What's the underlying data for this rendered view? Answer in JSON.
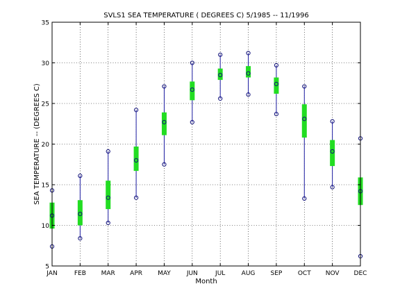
{
  "chart_data": {
    "type": "box",
    "title": "SVLS1  SEA TEMPERATURE ( DEGREES C) 5/1985 -- 11/1996",
    "xlabel": "Month",
    "ylabel": "SEA TEMPERATURE -- (DEGREES C)",
    "ylim": [
      5,
      35
    ],
    "yticks": [
      "5",
      "10",
      "15",
      "20",
      "25",
      "30",
      "35"
    ],
    "grid": true,
    "categories": [
      "JAN",
      "FEB",
      "MAR",
      "APR",
      "MAY",
      "JUN",
      "JUL",
      "AUG",
      "SEP",
      "OCT",
      "NOV",
      "DEC"
    ],
    "min": [
      7.4,
      8.4,
      10.3,
      13.4,
      17.5,
      22.7,
      25.6,
      26.1,
      23.7,
      13.3,
      14.7,
      6.2
    ],
    "max": [
      14.3,
      16.1,
      19.1,
      24.2,
      27.1,
      30.0,
      31.0,
      31.2,
      29.7,
      27.1,
      22.8,
      20.7
    ],
    "q1": [
      9.6,
      10.0,
      12.0,
      16.7,
      21.1,
      25.4,
      27.9,
      28.2,
      26.2,
      20.8,
      17.3,
      12.5
    ],
    "q3": [
      12.8,
      13.1,
      15.5,
      19.7,
      23.9,
      27.7,
      29.3,
      29.6,
      28.2,
      24.9,
      20.5,
      15.9
    ],
    "mean": [
      11.2,
      11.4,
      13.4,
      18.0,
      22.7,
      26.7,
      28.5,
      28.7,
      27.4,
      23.1,
      19.1,
      14.2
    ],
    "colors": {
      "box": "#22dd22",
      "whisker": "#1a1aa0",
      "marker": "#10107a",
      "grid": "#000000"
    }
  }
}
